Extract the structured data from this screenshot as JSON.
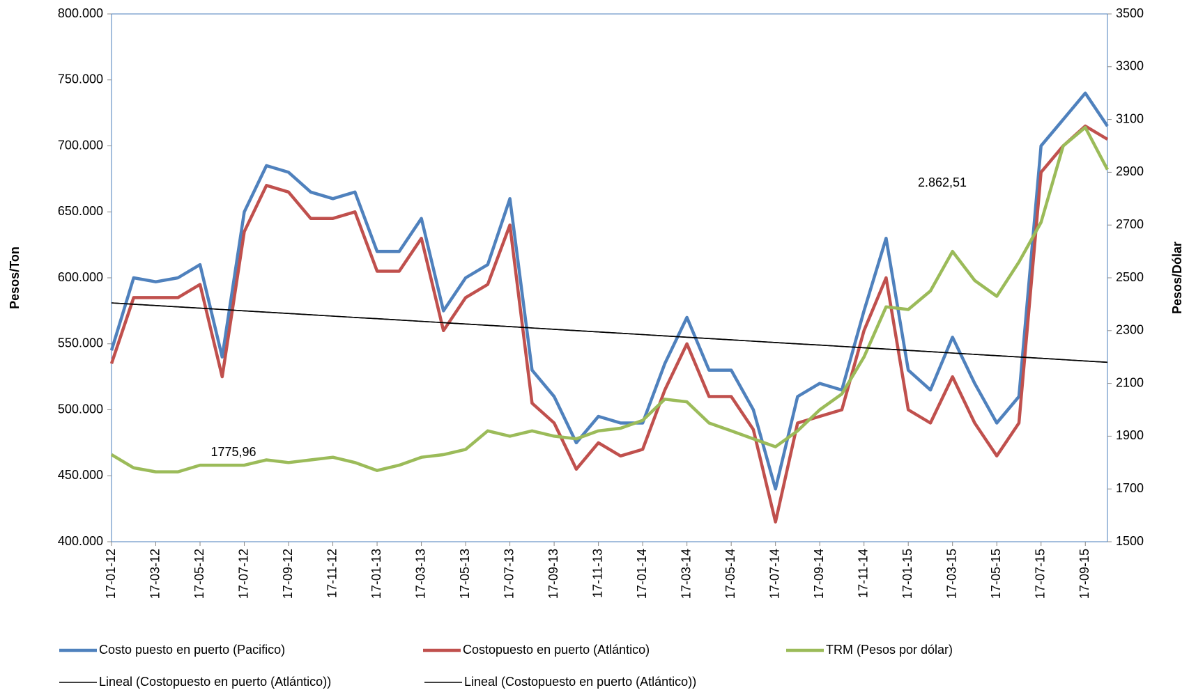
{
  "chart_data": {
    "type": "line",
    "y_label": "Pesos/Ton",
    "y2_label": "Pesos/Dólar",
    "categories": [
      "17-01-12",
      null,
      "17-03-12",
      null,
      "17-05-12",
      null,
      "17-07-12",
      null,
      "17-09-12",
      null,
      "17-11-12",
      null,
      "17-01-13",
      null,
      "17-03-13",
      null,
      "17-05-13",
      null,
      "17-07-13",
      null,
      "17-09-13",
      null,
      "17-11-13",
      null,
      "17-01-14",
      null,
      "17-03-14",
      null,
      "17-05-14",
      null,
      "17-07-14",
      null,
      "17-09-14",
      null,
      "17-11-14",
      null,
      "17-01-15",
      null,
      "17-03-15",
      null,
      "17-05-15",
      null,
      "17-07-15",
      null,
      "17-09-15",
      null
    ],
    "series": [
      {
        "name": "Costo puesto en puerto (Pacifico)",
        "color": "#4f81bd",
        "width": 4.5,
        "values": [
          545000,
          600000,
          597000,
          600000,
          610000,
          540000,
          650000,
          685000,
          680000,
          665000,
          660000,
          665000,
          620000,
          620000,
          645000,
          575000,
          600000,
          610000,
          660000,
          530000,
          510000,
          475000,
          495000,
          490000,
          490000,
          535000,
          570000,
          530000,
          530000,
          500000,
          440000,
          510000,
          520000,
          515000,
          575000,
          630000,
          530000,
          515000,
          555000,
          520000,
          490000,
          510000,
          700000,
          720000,
          740000,
          715000
        ]
      },
      {
        "name": "Costopuesto en puerto (Atlántico)",
        "color": "#c0504d",
        "width": 4.5,
        "values": [
          535000,
          585000,
          585000,
          585000,
          595000,
          525000,
          635000,
          670000,
          665000,
          645000,
          645000,
          650000,
          605000,
          605000,
          630000,
          560000,
          585000,
          595000,
          640000,
          505000,
          490000,
          455000,
          475000,
          465000,
          470000,
          515000,
          550000,
          510000,
          510000,
          485000,
          415000,
          490000,
          495000,
          500000,
          560000,
          600000,
          500000,
          490000,
          525000,
          490000,
          465000,
          490000,
          680000,
          700000,
          715000,
          705000
        ]
      },
      {
        "name": "TRM (Pesos por dólar)",
        "color": "#9bbb59",
        "width": 4.5,
        "axis": "y2",
        "values": [
          1830,
          1780,
          1765,
          1765,
          1790,
          1790,
          1790,
          1810,
          1800,
          1810,
          1820,
          1800,
          1770,
          1790,
          1820,
          1830,
          1850,
          1920,
          1900,
          1920,
          1900,
          1890,
          1920,
          1930,
          1960,
          2040,
          2030,
          1950,
          1920,
          1890,
          1860,
          1920,
          2000,
          2060,
          2200,
          2390,
          2380,
          2450,
          2600,
          2490,
          2430,
          2560,
          2710,
          3000,
          3070,
          2910
        ]
      },
      {
        "name": "Lineal (Costopuesto en puerto (Atlántico))",
        "color": "#000000",
        "width": 1.6,
        "values": [
          581000,
          580000,
          579000,
          578000,
          577000,
          576000,
          575000,
          574000,
          573000,
          572000,
          571000,
          570000,
          569000,
          568000,
          567000,
          566000,
          565000,
          564000,
          563000,
          562000,
          561000,
          560000,
          559000,
          558000,
          557000,
          556000,
          555000,
          554000,
          553000,
          552000,
          551000,
          550000,
          549000,
          548000,
          547000,
          546000,
          545000,
          544000,
          543000,
          542000,
          541000,
          540000,
          539000,
          538000,
          537000,
          536000
        ]
      },
      {
        "name": "Lineal (Costopuesto en puerto (Atlántico))",
        "color": "#000000",
        "width": 1.6,
        "values": [
          581000,
          580000,
          579000,
          578000,
          577000,
          576000,
          575000,
          574000,
          573000,
          572000,
          571000,
          570000,
          569000,
          568000,
          567000,
          566000,
          565000,
          564000,
          563000,
          562000,
          561000,
          560000,
          559000,
          558000,
          557000,
          556000,
          555000,
          554000,
          553000,
          552000,
          551000,
          550000,
          549000,
          548000,
          547000,
          546000,
          545000,
          544000,
          543000,
          542000,
          541000,
          540000,
          539000,
          538000,
          537000,
          536000
        ]
      }
    ],
    "ylim": [
      400000,
      800000
    ],
    "yticks": [
      {
        "value": 400000,
        "label": "400.000"
      },
      {
        "value": 450000,
        "label": "450.000"
      },
      {
        "value": 500000,
        "label": "500.000"
      },
      {
        "value": 550000,
        "label": "550.000"
      },
      {
        "value": 600000,
        "label": "600.000"
      },
      {
        "value": 650000,
        "label": "650.000"
      },
      {
        "value": 700000,
        "label": "700.000"
      },
      {
        "value": 750000,
        "label": "750.000"
      },
      {
        "value": 800000,
        "label": "800.000"
      }
    ],
    "y2lim": [
      1500,
      3500
    ],
    "y2ticks": [
      1500,
      1700,
      1900,
      2100,
      2300,
      2500,
      2700,
      2900,
      3100,
      3300,
      3500
    ],
    "annotations": [
      "1775,96",
      "2.862,51"
    ],
    "legend": "bottom"
  }
}
